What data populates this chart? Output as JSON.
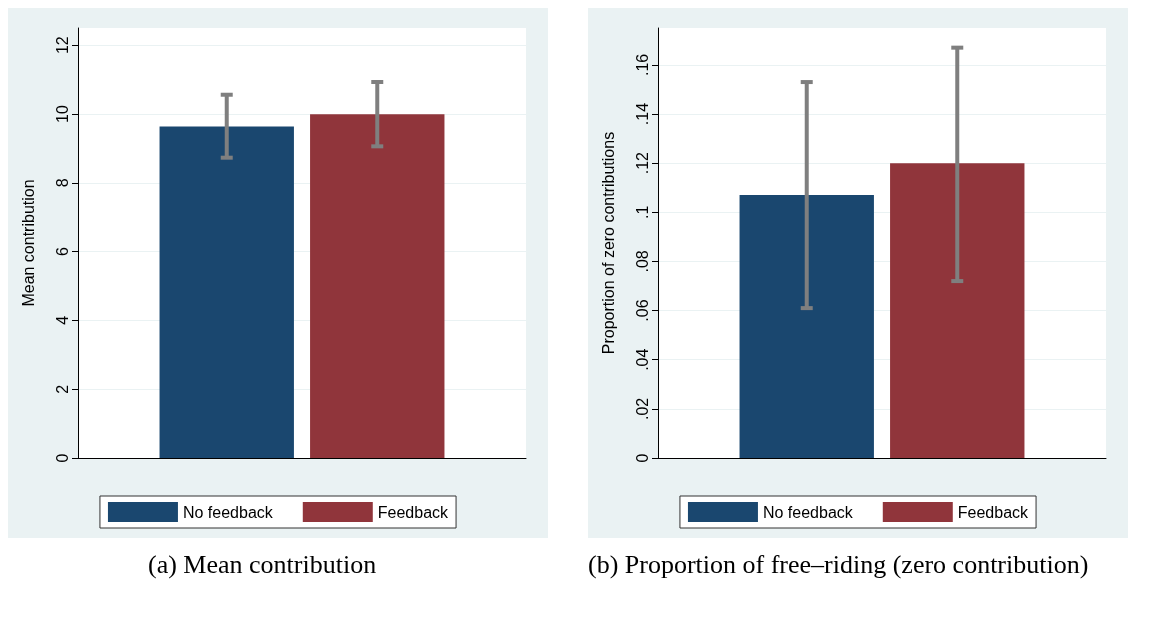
{
  "chart_data": [
    {
      "type": "bar",
      "categories": [
        null
      ],
      "ylabel": "Mean contribution",
      "ylim": [
        0,
        12.5
      ],
      "yticks": [
        0,
        2,
        4,
        6,
        8,
        10,
        12
      ],
      "grid": "y",
      "legend": "bottom",
      "annotations": [
        "(a) Mean contribution"
      ],
      "series": [
        {
          "name": "No feedback",
          "color": "#1a476f",
          "values": [
            9.64
          ],
          "errors": [
            [
              8.73,
              10.56
            ]
          ]
        },
        {
          "name": "Feedback",
          "color": "#90353b",
          "values": [
            9.99
          ],
          "errors": [
            [
              9.06,
              10.93
            ]
          ]
        }
      ]
    },
    {
      "type": "bar",
      "categories": [
        null
      ],
      "ylabel": "Proportion of zero contributions",
      "ylim": [
        0,
        0.175
      ],
      "yticks": [
        0,
        {
          "value": 0.02,
          "label": ".02"
        },
        {
          "value": 0.04,
          "label": ".04"
        },
        {
          "value": 0.06,
          "label": ".06"
        },
        {
          "value": 0.08,
          "label": ".08"
        },
        {
          "value": 0.1,
          "label": ".1"
        },
        {
          "value": 0.12,
          "label": ".12"
        },
        {
          "value": 0.14,
          "label": ".14"
        },
        {
          "value": 0.16,
          "label": ".16"
        }
      ],
      "grid": "y",
      "legend": "bottom",
      "annotations": [
        "(b) Proportion of free–riding (zero contribution)"
      ],
      "series": [
        {
          "name": "No feedback",
          "color": "#1a476f",
          "values": [
            0.107
          ],
          "errors": [
            [
              0.061,
              0.153
            ]
          ]
        },
        {
          "name": "Feedback",
          "color": "#90353b",
          "values": [
            0.12
          ],
          "errors": [
            [
              0.072,
              0.167
            ]
          ]
        }
      ]
    }
  ]
}
